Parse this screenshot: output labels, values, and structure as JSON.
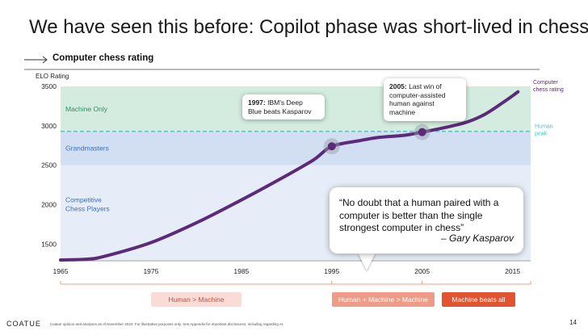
{
  "title": "We have seen this before: Copilot phase was short-lived in chess",
  "chart_data": {
    "type": "line",
    "title": "Computer chess rating",
    "ylabel": "ELO Rating",
    "ylim": [
      1300,
      3500
    ],
    "xlim": [
      1965,
      2017
    ],
    "x_ticks": [
      1965,
      1975,
      1985,
      1995,
      2005,
      2015
    ],
    "y_ticks": [
      1500,
      2000,
      2500,
      3000,
      3500
    ],
    "series": [
      {
        "name": "Computer chess rating",
        "color": "#5b2a78",
        "points": [
          [
            1965,
            1300
          ],
          [
            1968,
            1310
          ],
          [
            1970,
            1350
          ],
          [
            1975,
            1520
          ],
          [
            1980,
            1770
          ],
          [
            1985,
            2060
          ],
          [
            1990,
            2370
          ],
          [
            1993,
            2570
          ],
          [
            1995,
            2740
          ],
          [
            1998,
            2810
          ],
          [
            2000,
            2850
          ],
          [
            2003,
            2880
          ],
          [
            2005,
            2920
          ],
          [
            2008,
            2990
          ],
          [
            2010,
            3050
          ],
          [
            2012,
            3150
          ],
          [
            2014,
            3300
          ],
          [
            2015.6,
            3430
          ]
        ]
      }
    ],
    "bands": [
      {
        "label": "Machine Only",
        "from": 2930,
        "to": 3500,
        "color": "#d3ecdf",
        "label_color": "#2f8f5f"
      },
      {
        "label": "Grandmasters",
        "from": 2500,
        "to": 2930,
        "color": "#d2dff3",
        "label_color": "#3c6fb5"
      },
      {
        "label": "Competitive Chess Players",
        "label_lines": [
          "Competitive",
          "Chess Players"
        ],
        "from": 1300,
        "to": 2500,
        "color": "#e6edf8",
        "label_color": "#3c6fb5"
      }
    ],
    "reference_line": {
      "label": "Human peak",
      "label_lines": [
        "Human",
        "peak"
      ],
      "value": 2930,
      "color": "#4cc4c0"
    },
    "highlights": [
      {
        "x": 1995,
        "y": 2740,
        "year": "1997:",
        "text_lines": [
          "IBM's Deep",
          "Blue beats Kasparov"
        ]
      },
      {
        "x": 2005,
        "y": 2920,
        "year": "2005:",
        "text_lines": [
          "Last win of",
          "computer-assisted",
          "human against machine"
        ]
      }
    ],
    "series_label": [
      "Computer",
      "chess rating"
    ]
  },
  "quote": {
    "text": "“No doubt that a human paired with a computer is better than the single strongest computer in chess”",
    "author": "– Gary Kasparov"
  },
  "phases": [
    {
      "label": "Human > Machine",
      "bg": "#fadbd5",
      "color": "#c0533a"
    },
    {
      "label": "Human + Machine > Machine",
      "bg": "#ee9b87",
      "color": "#ffffff"
    },
    {
      "label": "Machine beats all",
      "bg": "#e2542f",
      "color": "#ffffff"
    }
  ],
  "footer": {
    "logo": "COATUE",
    "note": "Coatue opinion and analyses as of November 2023. For illustrative purposes only. See Appendix for important disclosures, including regarding AI.",
    "page": "14"
  }
}
